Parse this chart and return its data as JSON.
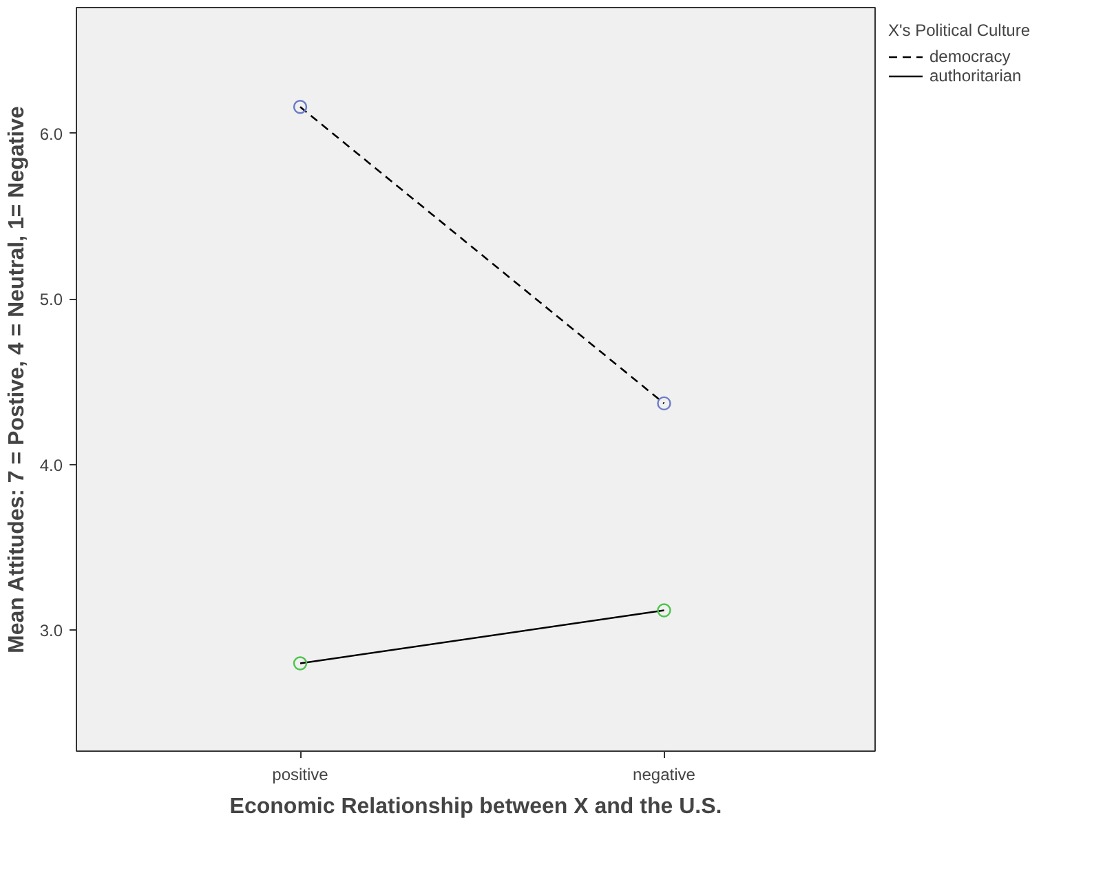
{
  "chart_data": {
    "type": "line",
    "xlabel": "Economic Relationship between X and the U.S.",
    "ylabel": "Mean Attitudes: 7 = Postive, 4 = Neutral, 1= Negative",
    "legend_title": "X's Political Culture",
    "categories": [
      "positive",
      "negative"
    ],
    "series": [
      {
        "name": "democracy",
        "color": "#000000",
        "colors": [
          "#6a7bc8",
          "#6a7bc8"
        ],
        "line_style": "dashed",
        "values": [
          6.16,
          4.37
        ]
      },
      {
        "name": "authoritarian",
        "color": "#000000",
        "colors": [
          "#4cc44c",
          "#4cc44c"
        ],
        "line_style": "solid",
        "values": [
          2.8,
          3.12
        ]
      }
    ],
    "marker": "circle",
    "ylim": [
      2.27,
      6.76
    ],
    "yticks": [
      {
        "value": 3,
        "label": "3.0"
      },
      {
        "value": 4,
        "label": "4.0"
      },
      {
        "value": 5,
        "label": "5.0"
      },
      {
        "value": 6,
        "label": "6.0"
      }
    ],
    "grid": false,
    "legend": "top right"
  }
}
